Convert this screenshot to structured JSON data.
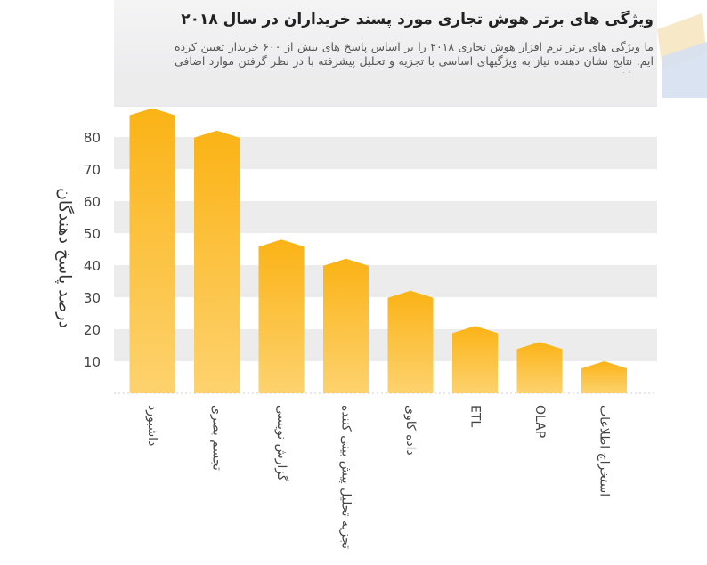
{
  "chart_data": {
    "type": "bar",
    "title": "ویژگی های برتر هوش تجاری مورد پسند خریداران در سال ۲۰۱۸",
    "subtitle": "ما ویژگی های برتر نرم افزار هوش تجاری ۲۰۱۸ را بر اساس پاسخ های بیش از ۶۰۰ خریدار تعیین کرده ایم. نتایج نشان دهنده نیاز به ویژگیهای اساسی با تجزیه و تحلیل پیشرفته با در نظر گرفتن موارد اضافی می باشد.",
    "ylabel": "درصد پاسخ دهندگان",
    "xlabel": "",
    "categories": [
      "داشبورد",
      "تجسم بصری",
      "گزارش نویسی",
      "تجزیه تحلیل پیش بینی کننده",
      "داده کاوی",
      "ETL",
      "OLAP",
      "استخراج اطلاعات"
    ],
    "values": [
      89,
      82,
      48,
      42,
      32,
      21,
      16,
      10
    ],
    "ylim": [
      0,
      90
    ],
    "yticks": [
      10,
      20,
      30,
      40,
      50,
      60,
      70,
      80
    ],
    "grid": true,
    "bar_color_top": "#fbb316",
    "bar_color_bottom": "#fdd26e",
    "band_color": "#ececed",
    "deco_colors": [
      "#f7e9c8",
      "#d5e0f1"
    ]
  }
}
